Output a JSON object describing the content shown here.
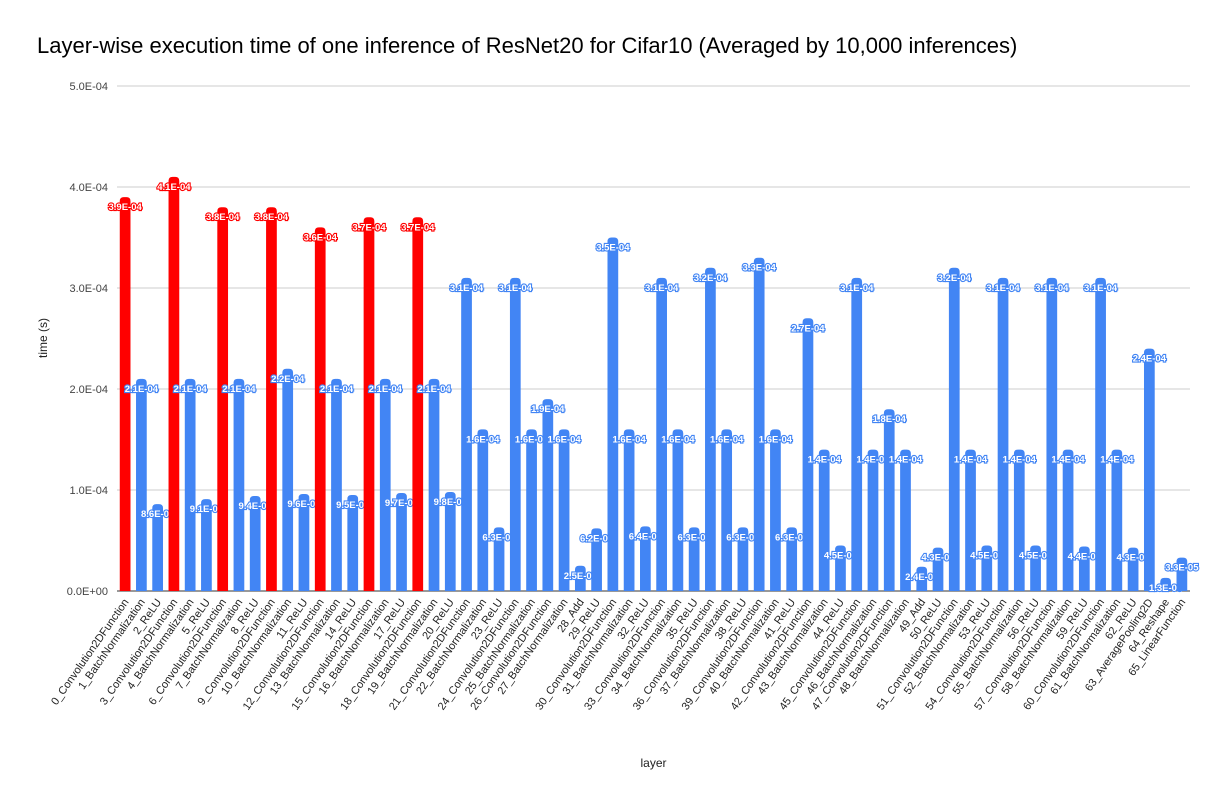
{
  "chart_data": {
    "type": "bar",
    "title": "Layer-wise execution time of one inference of ResNet20 for Cifar10 (Averaged by 10,000 inferences)",
    "xlabel": "layer",
    "ylabel": "time (s)",
    "ylim": [
      0,
      0.0005
    ],
    "yticks": [
      0,
      0.0001,
      0.0002,
      0.0003,
      0.0004,
      0.0005
    ],
    "ytick_labels": [
      "0.0E+00",
      "1.0E-04",
      "2.0E-04",
      "3.0E-04",
      "4.0E-04",
      "5.0E-04"
    ],
    "grid": true,
    "legend": "none",
    "colors": {
      "default": "#4285f4",
      "highlight": "#ff0000",
      "grid": "#cccccc",
      "axis": "#333333"
    },
    "categories": [
      "0_Convolution2DFunction",
      "1_BatchNormalization",
      "2_ReLU",
      "3_Convolution2DFunction",
      "4_BatchNormalization",
      "5_ReLU",
      "6_Convolution2DFunction",
      "7_BatchNormalization",
      "8_ReLU",
      "9_Convolution2DFunction",
      "10_BatchNormalization",
      "11_ReLU",
      "12_Convolution2DFunction",
      "13_BatchNormalization",
      "14_ReLU",
      "15_Convolution2DFunction",
      "16_BatchNormalization",
      "17_ReLU",
      "18_Convolution2DFunction",
      "19_BatchNormalization",
      "20_ReLU",
      "21_Convolution2DFunction",
      "22_BatchNormalization",
      "23_ReLU",
      "24_Convolution2DFunction",
      "25_BatchNormalization",
      "26_Convolution2DFunction",
      "27_BatchNormalization",
      "28_Add",
      "29_ReLU",
      "30_Convolution2DFunction",
      "31_BatchNormalization",
      "32_ReLU",
      "33_Convolution2DFunction",
      "34_BatchNormalization",
      "35_ReLU",
      "36_Convolution2DFunction",
      "37_BatchNormalization",
      "38_ReLU",
      "39_Convolution2DFunction",
      "40_BatchNormalization",
      "41_ReLU",
      "42_Convolution2DFunction",
      "43_BatchNormalization",
      "44_ReLU",
      "45_Convolution2DFunction",
      "46_BatchNormalization",
      "47_Convolution2DFunction",
      "48_BatchNormalization",
      "49_Add",
      "50_ReLU",
      "51_Convolution2DFunction",
      "52_BatchNormalization",
      "53_ReLU",
      "54_Convolution2DFunction",
      "55_BatchNormalization",
      "56_ReLU",
      "57_Convolution2DFunction",
      "58_BatchNormalization",
      "59_ReLU",
      "60_Convolution2DFunction",
      "61_BatchNormalization",
      "62_ReLU",
      "63_AveragePooling2D",
      "64_Reshape",
      "65_LinearFunction"
    ],
    "values": [
      0.00039,
      0.00021,
      8.6e-05,
      0.00041,
      0.00021,
      9.1e-05,
      0.00038,
      0.00021,
      9.4e-05,
      0.00038,
      0.00022,
      9.6e-05,
      0.00036,
      0.00021,
      9.5e-05,
      0.00037,
      0.00021,
      9.7e-05,
      0.00037,
      0.00021,
      9.8e-05,
      0.00031,
      0.00016,
      6.3e-05,
      0.00031,
      0.00016,
      0.00019,
      0.00016,
      2.5e-05,
      6.2e-05,
      0.00035,
      0.00016,
      6.4e-05,
      0.00031,
      0.00016,
      6.3e-05,
      0.00032,
      0.00016,
      6.3e-05,
      0.00033,
      0.00016,
      6.3e-05,
      0.00027,
      0.00014,
      4.5e-05,
      0.00031,
      0.00014,
      0.00018,
      0.00014,
      2.4e-05,
      4.3e-05,
      0.00032,
      0.00014,
      4.5e-05,
      0.00031,
      0.00014,
      4.5e-05,
      0.00031,
      0.00014,
      4.4e-05,
      0.00031,
      0.00014,
      4.3e-05,
      0.00024,
      1.3e-05,
      3.3e-05
    ],
    "data_labels": [
      "3.9E-04",
      "2.1E-04",
      "8.6E-05",
      "4.1E-04",
      "2.1E-04",
      "9.1E-05",
      "3.8E-04",
      "2.1E-04",
      "9.4E-05",
      "3.8E-04",
      "2.2E-04",
      "9.6E-05",
      "3.6E-04",
      "2.1E-04",
      "9.5E-05",
      "3.7E-04",
      "2.1E-04",
      "9.7E-05",
      "3.7E-04",
      "2.1E-04",
      "9.8E-05",
      "3.1E-04",
      "1.6E-04",
      "6.3E-05",
      "3.1E-04",
      "1.6E-04",
      "1.9E-04",
      "1.6E-04",
      "2.5E-05",
      "6.2E-05",
      "3.5E-04",
      "1.6E-04",
      "6.4E-05",
      "3.1E-04",
      "1.6E-04",
      "6.3E-05",
      "3.2E-04",
      "1.6E-04",
      "6.3E-05",
      "3.3E-04",
      "1.6E-04",
      "6.3E-05",
      "2.7E-04",
      "1.4E-04",
      "4.5E-05",
      "3.1E-04",
      "1.4E-04",
      "1.8E-04",
      "1.4E-04",
      "2.4E-05",
      "4.3E-05",
      "3.2E-04",
      "1.4E-04",
      "4.5E-05",
      "3.1E-04",
      "1.4E-04",
      "4.5E-05",
      "3.1E-04",
      "1.4E-04",
      "4.4E-05",
      "3.1E-04",
      "1.4E-04",
      "4.3E-05",
      "2.4E-04",
      "1.3E-05",
      "3.3E-05"
    ],
    "highlighted": [
      0,
      3,
      6,
      9,
      12,
      15,
      18
    ]
  }
}
